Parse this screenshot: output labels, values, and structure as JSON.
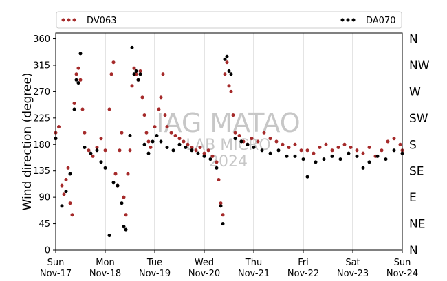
{
  "chart_data": {
    "type": "scatter",
    "xlabel": "",
    "ylabel": "Wind direction (degree)",
    "xlim": [
      "2024-11-17",
      "2024-11-24"
    ],
    "ylim": [
      0,
      370
    ],
    "yticks": [
      0,
      45,
      90,
      135,
      180,
      225,
      270,
      315,
      360
    ],
    "xticks": [
      {
        "day": "Sun",
        "date": "Nov-17"
      },
      {
        "day": "Mon",
        "date": "Nov-18"
      },
      {
        "day": "Tue",
        "date": "Nov-19"
      },
      {
        "day": "Wed",
        "date": "Nov-20"
      },
      {
        "day": "Thu",
        "date": "Nov-21"
      },
      {
        "day": "Fri",
        "date": "Nov-22"
      },
      {
        "day": "Sat",
        "date": "Nov-23"
      },
      {
        "day": "Sun",
        "date": "Nov-24"
      }
    ],
    "compass_labels": [
      "N",
      "NE",
      "E",
      "SE",
      "S",
      "SW",
      "W",
      "NW",
      "N"
    ],
    "grid": "vertical at day ticks",
    "legend_placement": "top, above plot",
    "watermark": [
      "IAG MATAO",
      "LAB MICRO",
      "2024"
    ],
    "series": [
      {
        "name": "DV063",
        "color": "#a52a2a",
        "values": [
          [
            "2024-11-17 00:00",
            200
          ],
          [
            "2024-11-17 01:30",
            210
          ],
          [
            "2024-11-17 03:00",
            110
          ],
          [
            "2024-11-17 04:00",
            95
          ],
          [
            "2024-11-17 05:00",
            120
          ],
          [
            "2024-11-17 06:00",
            140
          ],
          [
            "2024-11-17 07:00",
            80
          ],
          [
            "2024-11-17 08:00",
            60
          ],
          [
            "2024-11-17 09:00",
            250
          ],
          [
            "2024-11-17 10:00",
            300
          ],
          [
            "2024-11-17 11:00",
            310
          ],
          [
            "2024-11-17 12:00",
            290
          ],
          [
            "2024-11-17 13:00",
            240
          ],
          [
            "2024-11-17 14:00",
            200
          ],
          [
            "2024-11-17 16:00",
            170
          ],
          [
            "2024-11-17 18:00",
            160
          ],
          [
            "2024-11-17 20:00",
            175
          ],
          [
            "2024-11-17 22:00",
            190
          ],
          [
            "2024-11-18 00:00",
            170
          ],
          [
            "2024-11-18 02:00",
            240
          ],
          [
            "2024-11-18 03:00",
            300
          ],
          [
            "2024-11-18 04:00",
            320
          ],
          [
            "2024-11-18 05:00",
            130
          ],
          [
            "2024-11-18 06:00",
            110
          ],
          [
            "2024-11-18 07:00",
            170
          ],
          [
            "2024-11-18 08:00",
            200
          ],
          [
            "2024-11-18 09:00",
            90
          ],
          [
            "2024-11-18 10:00",
            60
          ],
          [
            "2024-11-18 11:00",
            130
          ],
          [
            "2024-11-18 12:00",
            170
          ],
          [
            "2024-11-18 13:00",
            280
          ],
          [
            "2024-11-18 14:00",
            310
          ],
          [
            "2024-11-18 15:00",
            300
          ],
          [
            "2024-11-18 16:00",
            290
          ],
          [
            "2024-11-18 17:00",
            305
          ],
          [
            "2024-11-18 18:00",
            260
          ],
          [
            "2024-11-18 19:00",
            230
          ],
          [
            "2024-11-18 20:00",
            200
          ],
          [
            "2024-11-18 21:00",
            185
          ],
          [
            "2024-11-18 22:00",
            175
          ],
          [
            "2024-11-19 00:00",
            210
          ],
          [
            "2024-11-19 02:00",
            240
          ],
          [
            "2024-11-19 03:00",
            260
          ],
          [
            "2024-11-19 04:00",
            300
          ],
          [
            "2024-11-19 05:00",
            230
          ],
          [
            "2024-11-19 06:00",
            210
          ],
          [
            "2024-11-19 08:00",
            200
          ],
          [
            "2024-11-19 10:00",
            195
          ],
          [
            "2024-11-19 12:00",
            190
          ],
          [
            "2024-11-19 14:00",
            185
          ],
          [
            "2024-11-19 16:00",
            180
          ],
          [
            "2024-11-19 18:00",
            175
          ],
          [
            "2024-11-19 20:00",
            170
          ],
          [
            "2024-11-19 22:00",
            175
          ],
          [
            "2024-11-20 00:00",
            165
          ],
          [
            "2024-11-20 02:00",
            170
          ],
          [
            "2024-11-20 04:00",
            160
          ],
          [
            "2024-11-20 06:00",
            150
          ],
          [
            "2024-11-20 07:00",
            120
          ],
          [
            "2024-11-20 08:00",
            80
          ],
          [
            "2024-11-20 09:00",
            60
          ],
          [
            "2024-11-20 10:00",
            300
          ],
          [
            "2024-11-20 11:00",
            320
          ],
          [
            "2024-11-20 12:00",
            280
          ],
          [
            "2024-11-20 13:00",
            270
          ],
          [
            "2024-11-20 14:00",
            230
          ],
          [
            "2024-11-20 15:00",
            200
          ],
          [
            "2024-11-20 17:00",
            195
          ],
          [
            "2024-11-20 19:00",
            185
          ],
          [
            "2024-11-20 21:00",
            180
          ],
          [
            "2024-11-20 23:00",
            190
          ],
          [
            "2024-11-21 02:00",
            185
          ],
          [
            "2024-11-21 05:00",
            200
          ],
          [
            "2024-11-21 08:00",
            190
          ],
          [
            "2024-11-21 11:00",
            185
          ],
          [
            "2024-11-21 14:00",
            180
          ],
          [
            "2024-11-21 17:00",
            175
          ],
          [
            "2024-11-21 20:00",
            180
          ],
          [
            "2024-11-21 23:00",
            170
          ],
          [
            "2024-11-22 02:00",
            170
          ],
          [
            "2024-11-22 05:00",
            165
          ],
          [
            "2024-11-22 08:00",
            175
          ],
          [
            "2024-11-22 11:00",
            180
          ],
          [
            "2024-11-22 14:00",
            170
          ],
          [
            "2024-11-22 17:00",
            175
          ],
          [
            "2024-11-22 20:00",
            180
          ],
          [
            "2024-11-22 23:00",
            175
          ],
          [
            "2024-11-23 02:00",
            170
          ],
          [
            "2024-11-23 05:00",
            165
          ],
          [
            "2024-11-23 08:00",
            175
          ],
          [
            "2024-11-23 11:00",
            160
          ],
          [
            "2024-11-23 14:00",
            170
          ],
          [
            "2024-11-23 17:00",
            185
          ],
          [
            "2024-11-23 20:00",
            190
          ],
          [
            "2024-11-23 23:00",
            180
          ],
          [
            "2024-11-24 00:00",
            170
          ]
        ]
      },
      {
        "name": "DA070",
        "color": "#000000",
        "values": [
          [
            "2024-11-17 00:00",
            190
          ],
          [
            "2024-11-17 03:00",
            75
          ],
          [
            "2024-11-17 05:00",
            100
          ],
          [
            "2024-11-17 07:00",
            130
          ],
          [
            "2024-11-17 09:00",
            240
          ],
          [
            "2024-11-17 10:00",
            290
          ],
          [
            "2024-11-17 11:00",
            285
          ],
          [
            "2024-11-17 12:00",
            335
          ],
          [
            "2024-11-17 14:00",
            175
          ],
          [
            "2024-11-17 17:00",
            165
          ],
          [
            "2024-11-17 20:00",
            170
          ],
          [
            "2024-11-17 22:00",
            150
          ],
          [
            "2024-11-18 00:00",
            140
          ],
          [
            "2024-11-18 02:00",
            25
          ],
          [
            "2024-11-18 04:00",
            115
          ],
          [
            "2024-11-18 06:00",
            110
          ],
          [
            "2024-11-18 08:00",
            80
          ],
          [
            "2024-11-18 09:00",
            40
          ],
          [
            "2024-11-18 10:00",
            35
          ],
          [
            "2024-11-18 12:00",
            195
          ],
          [
            "2024-11-18 13:00",
            345
          ],
          [
            "2024-11-18 14:00",
            300
          ],
          [
            "2024-11-18 15:00",
            305
          ],
          [
            "2024-11-18 16:00",
            290
          ],
          [
            "2024-11-18 17:00",
            300
          ],
          [
            "2024-11-18 19:00",
            180
          ],
          [
            "2024-11-18 21:00",
            165
          ],
          [
            "2024-11-18 23:00",
            185
          ],
          [
            "2024-11-19 01:00",
            195
          ],
          [
            "2024-11-19 03:00",
            185
          ],
          [
            "2024-11-19 06:00",
            175
          ],
          [
            "2024-11-19 09:00",
            170
          ],
          [
            "2024-11-19 12:00",
            180
          ],
          [
            "2024-11-19 15:00",
            175
          ],
          [
            "2024-11-19 18:00",
            170
          ],
          [
            "2024-11-19 21:00",
            165
          ],
          [
            "2024-11-20 00:00",
            160
          ],
          [
            "2024-11-20 03:00",
            155
          ],
          [
            "2024-11-20 06:00",
            140
          ],
          [
            "2024-11-20 08:00",
            75
          ],
          [
            "2024-11-20 09:00",
            45
          ],
          [
            "2024-11-20 10:00",
            325
          ],
          [
            "2024-11-20 11:00",
            330
          ],
          [
            "2024-11-20 12:00",
            305
          ],
          [
            "2024-11-20 13:00",
            300
          ],
          [
            "2024-11-20 15:00",
            190
          ],
          [
            "2024-11-20 18:00",
            185
          ],
          [
            "2024-11-20 21:00",
            180
          ],
          [
            "2024-11-21 00:00",
            175
          ],
          [
            "2024-11-21 04:00",
            170
          ],
          [
            "2024-11-21 08:00",
            165
          ],
          [
            "2024-11-21 12:00",
            170
          ],
          [
            "2024-11-21 16:00",
            160
          ],
          [
            "2024-11-21 20:00",
            160
          ],
          [
            "2024-11-22 00:00",
            155
          ],
          [
            "2024-11-22 02:00",
            125
          ],
          [
            "2024-11-22 06:00",
            150
          ],
          [
            "2024-11-22 10:00",
            155
          ],
          [
            "2024-11-22 14:00",
            160
          ],
          [
            "2024-11-22 18:00",
            155
          ],
          [
            "2024-11-22 22:00",
            165
          ],
          [
            "2024-11-23 02:00",
            160
          ],
          [
            "2024-11-23 05:00",
            140
          ],
          [
            "2024-11-23 08:00",
            150
          ],
          [
            "2024-11-23 12:00",
            160
          ],
          [
            "2024-11-23 16:00",
            155
          ],
          [
            "2024-11-23 20:00",
            170
          ],
          [
            "2024-11-24 00:00",
            165
          ]
        ]
      }
    ]
  }
}
